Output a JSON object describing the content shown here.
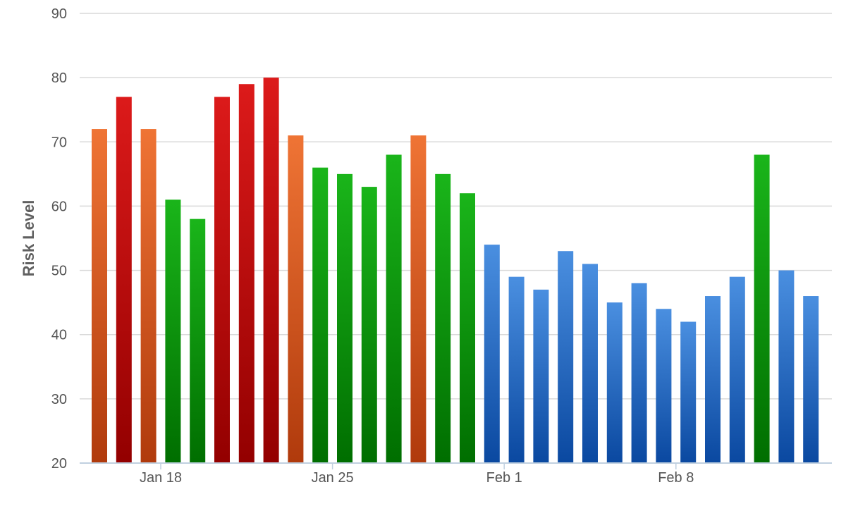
{
  "chart_data": {
    "type": "bar",
    "title": "",
    "xlabel": "",
    "ylabel": "Risk Level",
    "ylim": [
      20,
      90
    ],
    "yticks": [
      20,
      30,
      40,
      50,
      60,
      70,
      80,
      90
    ],
    "grid": true,
    "legend": "none",
    "xtick_labels": [
      {
        "label": "Jan 18",
        "at_index": 2.5
      },
      {
        "label": "Jan 25",
        "at_index": 9.5
      },
      {
        "label": "Feb 1",
        "at_index": 16.5
      },
      {
        "label": "Feb 8",
        "at_index": 23.5
      }
    ],
    "colors": {
      "orange": {
        "top": "#ef7435",
        "bottom": "#b03a0c"
      },
      "red": {
        "top": "#dc1a1a",
        "bottom": "#930000"
      },
      "green": {
        "top": "#1ab51a",
        "bottom": "#006e00"
      },
      "blue": {
        "top": "#4a8fe0",
        "bottom": "#0a48a0"
      }
    },
    "bars": [
      {
        "value": 72,
        "color": "orange"
      },
      {
        "value": 77,
        "color": "red"
      },
      {
        "value": 72,
        "color": "orange"
      },
      {
        "value": 61,
        "color": "green"
      },
      {
        "value": 58,
        "color": "green"
      },
      {
        "value": 77,
        "color": "red"
      },
      {
        "value": 79,
        "color": "red"
      },
      {
        "value": 80,
        "color": "red"
      },
      {
        "value": 71,
        "color": "orange"
      },
      {
        "value": 66,
        "color": "green"
      },
      {
        "value": 65,
        "color": "green"
      },
      {
        "value": 63,
        "color": "green"
      },
      {
        "value": 68,
        "color": "green"
      },
      {
        "value": 71,
        "color": "orange"
      },
      {
        "value": 65,
        "color": "green"
      },
      {
        "value": 62,
        "color": "green"
      },
      {
        "value": 54,
        "color": "blue"
      },
      {
        "value": 49,
        "color": "blue"
      },
      {
        "value": 47,
        "color": "blue"
      },
      {
        "value": 53,
        "color": "blue"
      },
      {
        "value": 51,
        "color": "blue"
      },
      {
        "value": 45,
        "color": "blue"
      },
      {
        "value": 48,
        "color": "blue"
      },
      {
        "value": 44,
        "color": "blue"
      },
      {
        "value": 42,
        "color": "blue"
      },
      {
        "value": 46,
        "color": "blue"
      },
      {
        "value": 49,
        "color": "blue"
      },
      {
        "value": 68,
        "color": "green"
      },
      {
        "value": 50,
        "color": "blue"
      },
      {
        "value": 46,
        "color": "blue"
      }
    ]
  }
}
